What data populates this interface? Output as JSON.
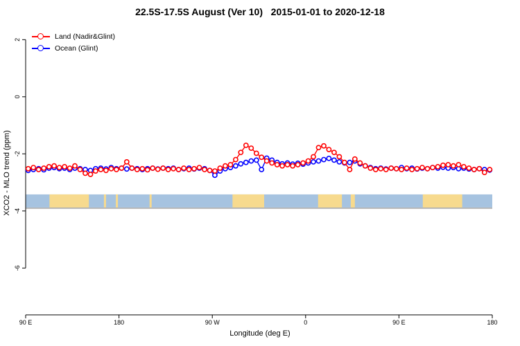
{
  "chart_data": {
    "type": "line",
    "title": "22.5S-17.5S August (Ver 10)   2015-01-01 to 2020-12-18",
    "xlabel": "Longitude (deg E)",
    "ylabel": "XCO2 - MLO trend (ppm)",
    "xlim": [
      90,
      540
    ],
    "ylim": [
      -7.64,
      2.42
    ],
    "grid": false,
    "legend_position": "top-left",
    "x_ticks": [
      {
        "value": 90,
        "label": "90 E"
      },
      {
        "value": 180,
        "label": "180"
      },
      {
        "value": 270,
        "label": "90 W"
      },
      {
        "value": 360,
        "label": "0"
      },
      {
        "value": 450,
        "label": "90 E"
      },
      {
        "value": 540,
        "label": "180"
      }
    ],
    "y_ticks": [
      {
        "value": 2,
        "label": "2"
      },
      {
        "value": 0,
        "label": "0"
      },
      {
        "value": -2,
        "label": "-2"
      },
      {
        "value": -4,
        "label": "-4"
      },
      {
        "value": -6,
        "label": "-6"
      }
    ],
    "x": [
      92.5,
      97.5,
      102.5,
      107.5,
      112.5,
      117.5,
      122.5,
      127.5,
      132.5,
      137.5,
      142.5,
      147.5,
      152.5,
      157.5,
      162.5,
      167.5,
      172.5,
      177.5,
      182.5,
      187.5,
      192.5,
      197.5,
      202.5,
      207.5,
      212.5,
      217.5,
      222.5,
      227.5,
      232.5,
      237.5,
      242.5,
      247.5,
      252.5,
      257.5,
      262.5,
      267.5,
      272.5,
      277.5,
      282.5,
      287.5,
      292.5,
      297.5,
      302.5,
      307.5,
      312.5,
      317.5,
      322.5,
      327.5,
      332.5,
      337.5,
      342.5,
      347.5,
      352.5,
      357.5,
      362.5,
      367.5,
      372.5,
      377.5,
      382.5,
      387.5,
      392.5,
      397.5,
      402.5,
      407.5,
      412.5,
      417.5,
      422.5,
      427.5,
      432.5,
      437.5,
      442.5,
      447.5,
      452.5,
      457.5,
      462.5,
      467.5,
      472.5,
      477.5,
      482.5,
      487.5,
      492.5,
      497.5,
      502.5,
      507.5,
      512.5,
      517.5,
      522.5,
      527.5,
      532.5,
      537.5
    ],
    "series": [
      {
        "id": "land",
        "name": "Land (Nadir&Glint)",
        "color": "#ff0000",
        "values": [
          -2.52,
          -2.48,
          -2.55,
          -2.5,
          -2.45,
          -2.42,
          -2.48,
          -2.45,
          -2.5,
          -2.42,
          -2.55,
          -2.68,
          -2.72,
          -2.6,
          -2.55,
          -2.58,
          -2.52,
          -2.55,
          -2.5,
          -2.28,
          -2.5,
          -2.55,
          -2.52,
          -2.56,
          -2.5,
          -2.54,
          -2.5,
          -2.55,
          -2.52,
          -2.55,
          -2.5,
          -2.55,
          -2.52,
          -2.48,
          -2.55,
          -2.58,
          -2.6,
          -2.5,
          -2.42,
          -2.38,
          -2.2,
          -1.95,
          -1.7,
          -1.8,
          -1.98,
          -2.12,
          -2.25,
          -2.32,
          -2.38,
          -2.42,
          -2.38,
          -2.42,
          -2.38,
          -2.32,
          -2.25,
          -2.1,
          -1.78,
          -1.72,
          -1.85,
          -1.95,
          -2.1,
          -2.3,
          -2.55,
          -2.18,
          -2.32,
          -2.42,
          -2.5,
          -2.55,
          -2.52,
          -2.55,
          -2.5,
          -2.52,
          -2.55,
          -2.5,
          -2.55,
          -2.52,
          -2.48,
          -2.52,
          -2.48,
          -2.45,
          -2.4,
          -2.38,
          -2.42,
          -2.38,
          -2.45,
          -2.5,
          -2.55,
          -2.52,
          -2.65,
          -2.55
        ]
      },
      {
        "id": "ocean",
        "name": "Ocean (Glint)",
        "color": "#0000ff",
        "values": [
          -2.58,
          -2.55,
          -2.52,
          -2.56,
          -2.5,
          -2.48,
          -2.52,
          -2.5,
          -2.55,
          -2.5,
          -2.52,
          -2.55,
          -2.58,
          -2.52,
          -2.5,
          -2.53,
          -2.48,
          -2.52,
          -2.5,
          -2.53,
          -2.5,
          -2.52,
          -2.55,
          -2.52,
          -2.5,
          -2.53,
          -2.5,
          -2.52,
          -2.5,
          -2.55,
          -2.52,
          -2.5,
          -2.53,
          -2.5,
          -2.52,
          -2.58,
          -2.75,
          -2.6,
          -2.52,
          -2.48,
          -2.42,
          -2.35,
          -2.3,
          -2.25,
          -2.22,
          -2.55,
          -2.15,
          -2.22,
          -2.3,
          -2.35,
          -2.32,
          -2.36,
          -2.33,
          -2.36,
          -2.32,
          -2.28,
          -2.25,
          -2.2,
          -2.16,
          -2.22,
          -2.28,
          -2.32,
          -2.3,
          -2.25,
          -2.35,
          -2.42,
          -2.48,
          -2.52,
          -2.5,
          -2.53,
          -2.5,
          -2.52,
          -2.48,
          -2.52,
          -2.5,
          -2.53,
          -2.5,
          -2.52,
          -2.48,
          -2.5,
          -2.47,
          -2.5,
          -2.48,
          -2.52,
          -2.5,
          -2.53,
          -2.55,
          -2.52,
          -2.55,
          -2.57
        ]
      }
    ],
    "map_band": {
      "y_top": -3.42,
      "y_bottom": -3.88,
      "ocean_color": "#a6c3e0",
      "land_color": "#f7da8e",
      "border_color": "#8f8f8f",
      "land_patches": [
        [
          113,
          151
        ],
        [
          165.5,
          167.5
        ],
        [
          177,
          179
        ],
        [
          209.5,
          211.5
        ],
        [
          289.5,
          320
        ],
        [
          372,
          395
        ],
        [
          403.5,
          407.5
        ],
        [
          473,
          511
        ]
      ]
    },
    "legend": {
      "items": [
        {
          "label": "Land (Nadir&Glint)"
        },
        {
          "label": "Ocean (Glint)"
        }
      ]
    }
  }
}
